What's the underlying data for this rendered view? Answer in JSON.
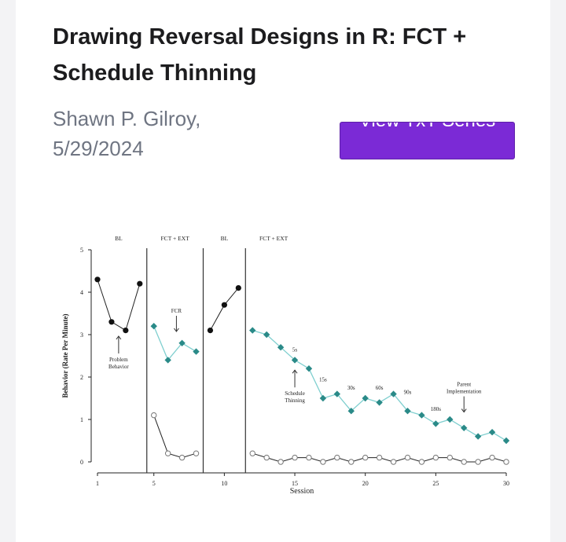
{
  "post": {
    "title": "Drawing Reversal Designs in R: FCT + Schedule Thinning",
    "author": "Shawn P. Gilroy,",
    "date": "5/29/2024",
    "button_label": "View TxT Series"
  },
  "colors": {
    "accent": "#7b2ad6",
    "series_treatment": "#2a8a88",
    "series_line": "#7fcfcf",
    "series_marker_fill": "#ffffff"
  },
  "chart_data": {
    "type": "line",
    "xlabel": "Session",
    "ylabel": "Behavior (Rate Per Minute)",
    "xlim": [
      1,
      30
    ],
    "ylim": [
      0,
      5
    ],
    "xticks": [
      1,
      5,
      10,
      15,
      20,
      25,
      30
    ],
    "yticks": [
      0,
      1,
      2,
      3,
      4,
      5
    ],
    "phase_labels": [
      "BL",
      "FCT + EXT",
      "BL",
      "FCT + EXT"
    ],
    "phase_changes": [
      4.5,
      8.5,
      11.5
    ],
    "series": [
      {
        "marker": "filled-circle",
        "x": [
          1,
          2,
          3,
          4
        ],
        "y": [
          4.3,
          3.3,
          3.1,
          4.2
        ]
      },
      {
        "marker": "filled-circle",
        "x": [
          9,
          10,
          11
        ],
        "y": [
          3.1,
          3.7,
          4.1
        ]
      },
      {
        "marker": "diamond",
        "x": [
          5,
          6,
          7,
          8
        ],
        "y": [
          3.2,
          2.4,
          2.8,
          2.6
        ]
      },
      {
        "marker": "diamond",
        "x": [
          12,
          13,
          14,
          15,
          16,
          17,
          18,
          19,
          20,
          21,
          22,
          23,
          24,
          25,
          26,
          27,
          28,
          29,
          30
        ],
        "y": [
          3.1,
          3.0,
          2.7,
          2.4,
          2.2,
          1.5,
          1.6,
          1.2,
          1.5,
          1.4,
          1.6,
          1.2,
          1.1,
          0.9,
          1.0,
          0.8,
          0.6,
          0.7,
          0.5
        ]
      },
      {
        "marker": "open-circle",
        "x": [
          5,
          6,
          7,
          8
        ],
        "y": [
          1.1,
          0.2,
          0.1,
          0.2
        ]
      },
      {
        "marker": "open-circle",
        "x": [
          12,
          13,
          14,
          15,
          16,
          17,
          18,
          19,
          20,
          21,
          22,
          23,
          24,
          25,
          26,
          27,
          28,
          29,
          30
        ],
        "y": [
          0.2,
          0.1,
          0.0,
          0.1,
          0.1,
          0.0,
          0.1,
          0.0,
          0.1,
          0.1,
          0.0,
          0.1,
          0.0,
          0.1,
          0.1,
          0.0,
          0.0,
          0.1,
          0.0
        ]
      }
    ],
    "annotations": [
      {
        "text": "Problem Behavior",
        "x": 2.5,
        "y": 3.0,
        "arrow": true,
        "lines": [
          "Problem",
          "Behavior"
        ]
      },
      {
        "text": "FCR",
        "x": 6.6,
        "y": 3.0,
        "arrow": true,
        "lines": [
          "FCR"
        ]
      },
      {
        "text": "5s",
        "x": 15,
        "y": 2.6,
        "arrow": false,
        "lines": [
          "5s"
        ]
      },
      {
        "text": "Schedule Thinning",
        "x": 15,
        "y": 2.2,
        "arrow": true,
        "lines": [
          "Schedule",
          "Thinning"
        ]
      },
      {
        "text": "15s",
        "x": 17,
        "y": 1.9,
        "arrow": false,
        "lines": [
          "15s"
        ]
      },
      {
        "text": "30s",
        "x": 19,
        "y": 1.7,
        "arrow": false,
        "lines": [
          "30s"
        ]
      },
      {
        "text": "60s",
        "x": 21,
        "y": 1.7,
        "arrow": false,
        "lines": [
          "60s"
        ]
      },
      {
        "text": "90s",
        "x": 23,
        "y": 1.6,
        "arrow": false,
        "lines": [
          "90s"
        ]
      },
      {
        "text": "180s",
        "x": 25,
        "y": 1.2,
        "arrow": false,
        "lines": [
          "180s"
        ]
      },
      {
        "text": "Parent Implementation",
        "x": 27,
        "y": 1.1,
        "arrow": true,
        "lines": [
          "Parent",
          "Implementation"
        ]
      }
    ]
  }
}
